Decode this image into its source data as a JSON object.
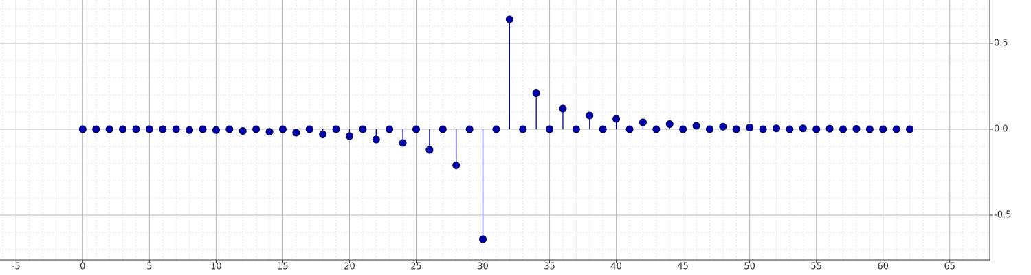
{
  "chart_data": {
    "type": "stem",
    "x": [
      0,
      1,
      2,
      3,
      4,
      5,
      6,
      7,
      8,
      9,
      10,
      11,
      12,
      13,
      14,
      15,
      16,
      17,
      18,
      19,
      20,
      21,
      22,
      23,
      24,
      25,
      26,
      27,
      28,
      29,
      30,
      31,
      32,
      33,
      34,
      35,
      36,
      37,
      38,
      39,
      40,
      41,
      42,
      43,
      44,
      45,
      46,
      47,
      48,
      49,
      50,
      51,
      52,
      53,
      54,
      55,
      56,
      57,
      58,
      59,
      60,
      61,
      62
    ],
    "series": [
      {
        "color": "#0000aa",
        "values": [
          0,
          0,
          0,
          0,
          0,
          0,
          0,
          0,
          -0.005,
          0,
          -0.005,
          0,
          -0.01,
          0,
          -0.015,
          0,
          -0.02,
          0,
          -0.03,
          0,
          -0.04,
          0,
          -0.06,
          0,
          -0.08,
          0,
          -0.12,
          0,
          -0.21,
          0,
          -0.64,
          0,
          0.64,
          0,
          0.21,
          0,
          0.12,
          0,
          0.08,
          0,
          0.06,
          0,
          0.04,
          0,
          0.03,
          0,
          0.02,
          0,
          0.015,
          0,
          0.01,
          0,
          0.005,
          0,
          0.005,
          0,
          0.003,
          0,
          0.002,
          0,
          0,
          0,
          0
        ]
      }
    ],
    "xlim": [
      -6.2,
      68
    ],
    "xticks": [
      -5,
      0,
      5,
      10,
      15,
      20,
      25,
      30,
      35,
      40,
      45,
      50,
      55,
      60,
      65
    ],
    "ylim": [
      -0.76,
      0.752
    ],
    "yticks": [
      -0.5,
      {
        "value": 0,
        "label": "0.0"
      },
      0.5
    ],
    "grid": true
  }
}
